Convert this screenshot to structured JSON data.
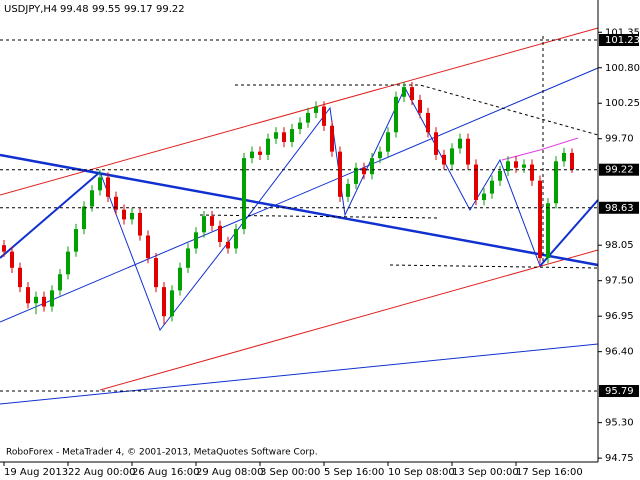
{
  "chart_data": {
    "type": "candlestick",
    "title": "USDJPY,H4",
    "footer": "RoboForex - MetaTrader 4, © 2001-2013, MetaQuotes Software Corp.",
    "categories": [
      "19 Aug 2013",
      null,
      null,
      null,
      null,
      null,
      null,
      null,
      "22 Aug 00:00",
      null,
      null,
      null,
      null,
      null,
      null,
      null,
      "26 Aug 16:00",
      null,
      null,
      null,
      null,
      null,
      null,
      null,
      "29 Aug 08:00",
      null,
      null,
      null,
      null,
      null,
      null,
      null,
      "3 Sep 00:00",
      null,
      null,
      null,
      null,
      null,
      null,
      null,
      "5 Sep 16:00",
      null,
      null,
      null,
      null,
      null,
      null,
      null,
      "10 Sep 08:00",
      null,
      null,
      null,
      null,
      null,
      null,
      null,
      "13 Sep 00:00",
      null,
      null,
      null,
      null,
      null,
      null,
      null,
      "17 Sep 16:00",
      null,
      null,
      null,
      null,
      null,
      null,
      null
    ],
    "open": [
      98.05,
      97.95,
      97.7,
      97.4,
      97.15,
      97.25,
      97.1,
      97.35,
      97.6,
      97.95,
      98.3,
      98.65,
      98.9,
      99.1,
      98.8,
      98.6,
      98.45,
      98.55,
      98.2,
      97.85,
      97.4,
      96.95,
      97.35,
      97.7,
      98.0,
      98.25,
      98.5,
      98.35,
      98.1,
      98.0,
      98.3,
      99.4,
      99.5,
      99.45,
      99.7,
      99.8,
      99.65,
      99.85,
      99.95,
      100.1,
      100.2,
      99.9,
      99.5,
      98.8,
      99.0,
      99.25,
      99.15,
      99.4,
      99.5,
      99.8,
      100.35,
      100.5,
      100.3,
      100.1,
      99.8,
      99.45,
      99.3,
      99.55,
      99.7,
      99.3,
      98.75,
      98.85,
      99.05,
      99.2,
      99.35,
      99.25,
      99.3,
      99.05,
      97.85,
      98.7,
      99.35,
      99.48
    ],
    "high": [
      98.13,
      98.03,
      97.78,
      97.48,
      97.33,
      97.33,
      97.43,
      97.68,
      98.03,
      98.38,
      98.73,
      98.98,
      99.22,
      99.18,
      98.88,
      98.68,
      98.63,
      98.63,
      98.28,
      97.93,
      97.48,
      97.43,
      97.78,
      98.08,
      98.33,
      98.58,
      98.58,
      98.43,
      98.18,
      98.38,
      99.48,
      99.58,
      99.58,
      99.78,
      99.88,
      99.88,
      99.93,
      100.03,
      100.18,
      100.28,
      100.28,
      99.98,
      99.58,
      99.08,
      99.33,
      99.33,
      99.48,
      99.58,
      99.88,
      100.43,
      100.58,
      100.58,
      100.38,
      100.18,
      99.88,
      99.53,
      99.63,
      99.78,
      99.78,
      99.38,
      98.93,
      99.13,
      99.28,
      99.43,
      99.43,
      99.38,
      99.38,
      99.13,
      98.78,
      99.43,
      99.56,
      99.55
    ],
    "low": [
      97.87,
      97.62,
      97.32,
      97.07,
      96.98,
      97.02,
      97.02,
      97.27,
      97.52,
      97.87,
      98.22,
      98.57,
      98.82,
      98.72,
      98.52,
      98.37,
      98.37,
      98.12,
      97.77,
      97.32,
      96.82,
      96.87,
      97.27,
      97.62,
      97.92,
      98.17,
      98.27,
      98.02,
      97.92,
      97.92,
      98.22,
      99.32,
      99.37,
      99.37,
      99.62,
      99.57,
      99.57,
      99.77,
      99.87,
      100.02,
      99.82,
      99.42,
      98.72,
      98.72,
      98.92,
      99.07,
      99.07,
      99.32,
      99.42,
      99.72,
      100.27,
      100.22,
      100.02,
      99.72,
      99.37,
      99.22,
      99.22,
      99.47,
      99.22,
      98.67,
      98.67,
      98.77,
      98.97,
      99.12,
      99.17,
      99.17,
      98.97,
      97.77,
      97.77,
      98.62,
      99.27,
      99.17
    ],
    "close": [
      97.95,
      97.7,
      97.4,
      97.15,
      97.25,
      97.1,
      97.35,
      97.6,
      97.95,
      98.3,
      98.65,
      98.9,
      99.1,
      98.8,
      98.6,
      98.45,
      98.55,
      98.2,
      97.85,
      97.4,
      96.95,
      97.35,
      97.7,
      98.0,
      98.25,
      98.5,
      98.35,
      98.1,
      98.0,
      98.3,
      99.4,
      99.5,
      99.45,
      99.7,
      99.8,
      99.65,
      99.85,
      99.95,
      100.1,
      100.2,
      99.9,
      99.5,
      98.8,
      99.0,
      99.25,
      99.15,
      99.4,
      99.5,
      99.8,
      100.35,
      100.5,
      100.3,
      100.1,
      99.8,
      99.45,
      99.3,
      99.55,
      99.7,
      99.3,
      98.75,
      98.85,
      99.05,
      99.2,
      99.35,
      99.25,
      99.3,
      99.05,
      97.85,
      98.7,
      99.35,
      99.48,
      99.22
    ],
    "up_color": "#00a000",
    "down_color": "#e00000",
    "ylim": [
      94.69,
      101.85
    ],
    "yticks": [
      101.35,
      {
        "value": 100.8,
        "label": "100.80"
      },
      100.25,
      {
        "value": 99.7,
        "label": "99.70"
      },
      98.05,
      {
        "value": 97.5,
        "label": "97.50"
      },
      96.95,
      {
        "value": 96.4,
        "label": "96.40"
      },
      {
        "value": 95.3,
        "label": "95.30"
      },
      94.75
    ],
    "hlines": [
      101.23,
      99.22,
      98.63,
      95.79
    ]
  }
}
